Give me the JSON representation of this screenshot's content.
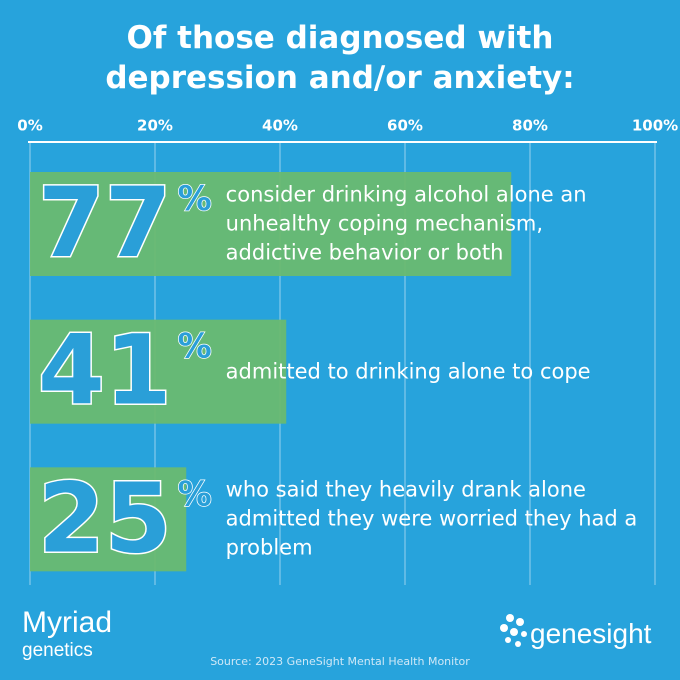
{
  "chart_data": {
    "type": "bar",
    "orientation": "horizontal",
    "title": "Of those diagnosed with depression and/or anxiety:",
    "categories": [
      "consider drinking alcohol alone an unhealthy coping mechanism, addictive behavior or both",
      "admitted to drinking alone to cope",
      "who said they heavily drank alone admitted they were worried they had a problem"
    ],
    "values": [
      77,
      41,
      25
    ],
    "value_labels": [
      "77%",
      "41%",
      "25%"
    ],
    "color": "#6bbb6c",
    "xlim": [
      0,
      100
    ],
    "xticks": [
      {
        "value": 0,
        "label": "0%"
      },
      {
        "value": 20,
        "label": "20%"
      },
      {
        "value": 40,
        "label": "40%"
      },
      {
        "value": 60,
        "label": "60%"
      },
      {
        "value": 80,
        "label": "80%"
      },
      {
        "value": 100,
        "label": "100%"
      }
    ],
    "grid": true,
    "source": "Source: 2023 GeneSight Mental Health Monitor"
  },
  "logos": {
    "left": [
      "Myriad",
      "genetics"
    ],
    "right": "genesight"
  }
}
